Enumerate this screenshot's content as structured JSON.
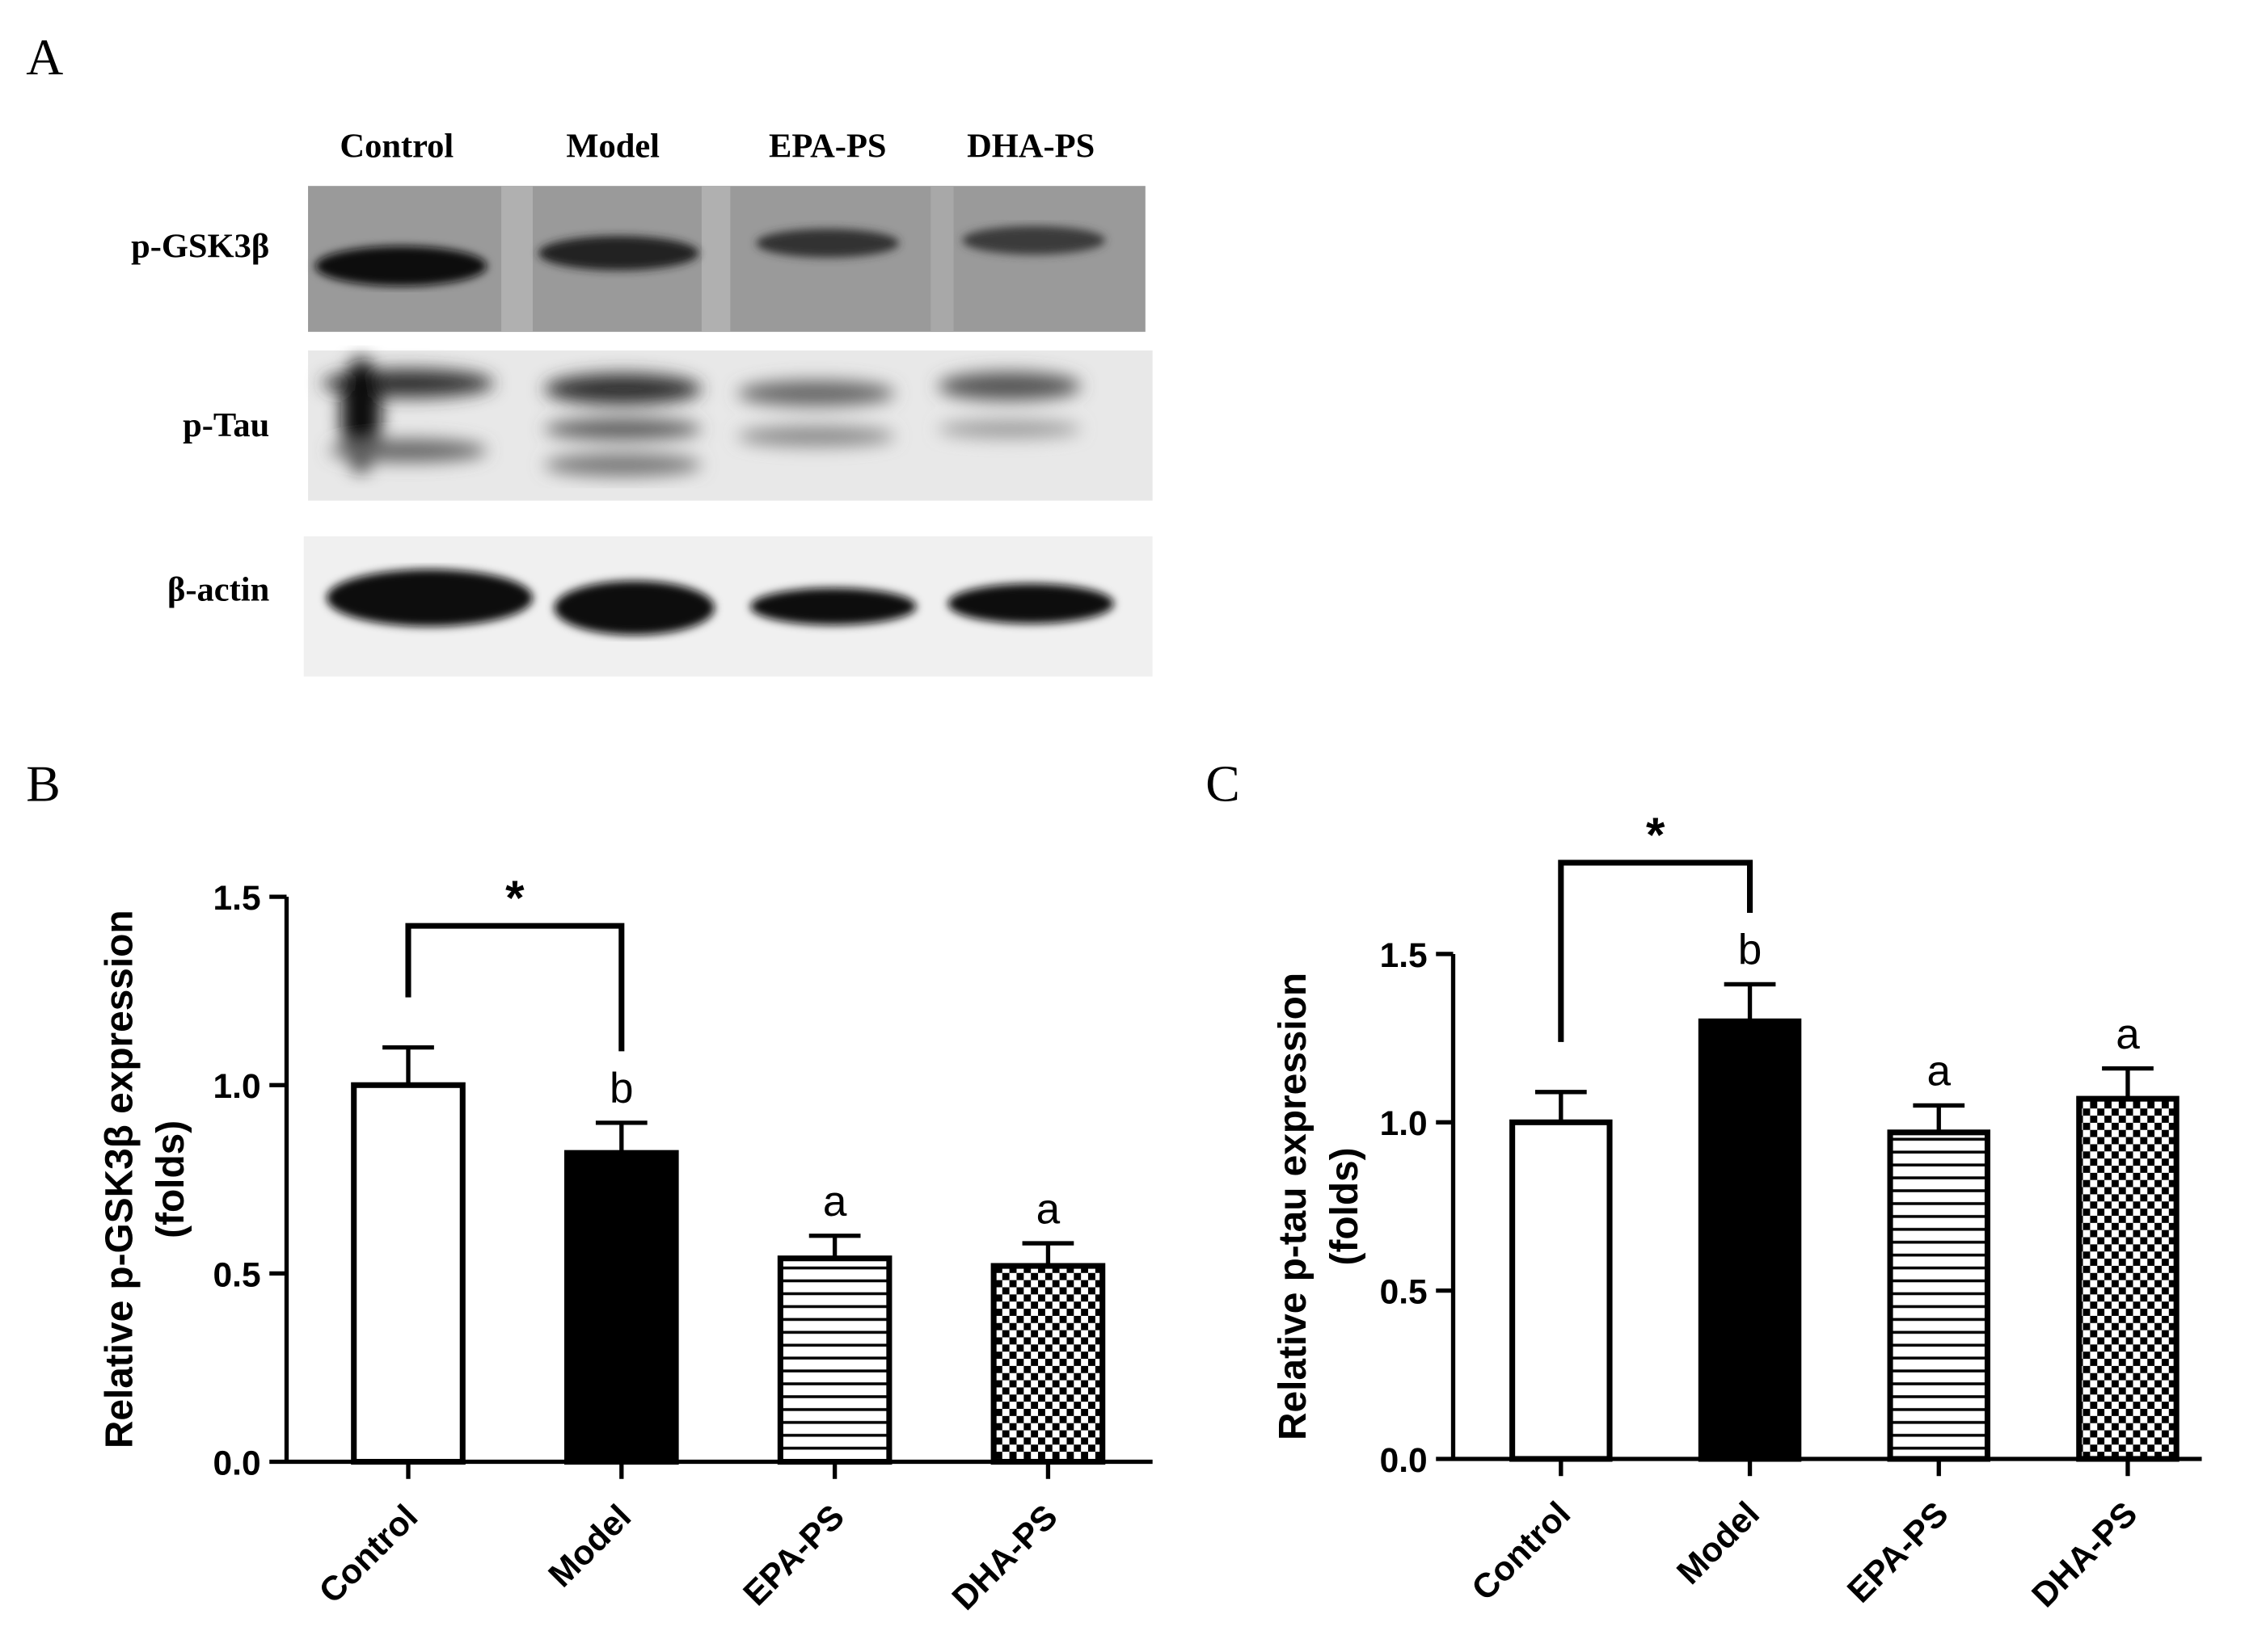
{
  "panel_labels": [
    "A",
    "B",
    "C"
  ],
  "blot": {
    "lanes": [
      "Control",
      "Model",
      "EPA-PS",
      "DHA-PS"
    ],
    "rows": [
      "p-GSK3β",
      "p-Tau",
      "β-actin"
    ]
  },
  "chart_data": [
    {
      "type": "bar",
      "categories": [
        "Control",
        "Model",
        "EPA-PS",
        "DHA-PS"
      ],
      "values": [
        1.0,
        0.82,
        0.54,
        0.52
      ],
      "errors": [
        0.1,
        0.08,
        0.06,
        0.06
      ],
      "letters": [
        null,
        "b",
        "a",
        "a"
      ],
      "fills": [
        "open",
        "solid",
        "horizontal-lines",
        "checkered"
      ],
      "ylabel": [
        "Relative p-GSK3β expression",
        "(folds)"
      ],
      "ylim": [
        0,
        1.5
      ],
      "yticks": [
        {
          "value": 0,
          "label": "0.0"
        },
        0.5,
        {
          "value": 1,
          "label": "1.0"
        },
        1.5
      ],
      "significance": {
        "from": 0,
        "to": 1,
        "label": "*"
      }
    },
    {
      "type": "bar",
      "categories": [
        "Control",
        "Model",
        "EPA-PS",
        "DHA-PS"
      ],
      "values": [
        1.0,
        1.3,
        0.97,
        1.07
      ],
      "errors": [
        0.09,
        0.11,
        0.08,
        0.09
      ],
      "letters": [
        null,
        "b",
        "a",
        "a"
      ],
      "fills": [
        "open",
        "solid",
        "horizontal-lines",
        "checkered"
      ],
      "ylabel": [
        "Relative p-tau expression",
        "(folds)"
      ],
      "ylim": [
        0,
        1.5
      ],
      "yticks": [
        {
          "value": 0,
          "label": "0.0"
        },
        0.5,
        {
          "value": 1,
          "label": "1.0"
        },
        1.5
      ],
      "significance": {
        "from": 0,
        "to": 1,
        "label": "*"
      }
    }
  ]
}
